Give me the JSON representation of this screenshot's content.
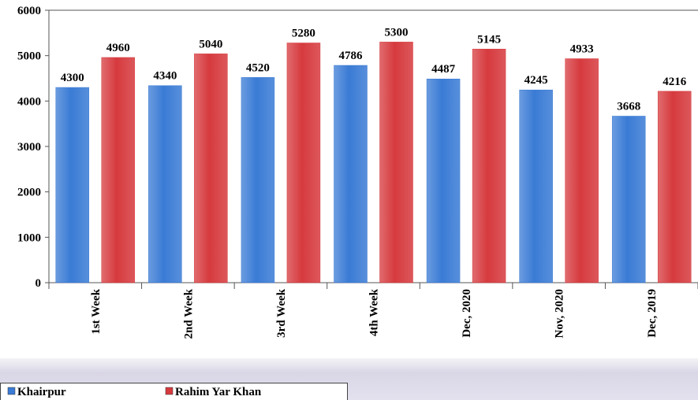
{
  "chart_data": {
    "type": "bar",
    "categories": [
      "1st Week",
      "2nd Week",
      "3rd Week",
      "4th Week",
      "Dec, 2020",
      "Nov, 2020",
      "Dec, 2019"
    ],
    "series": [
      {
        "name": "Khairpur",
        "color": "#3a7bd5",
        "values": [
          4300,
          4340,
          4520,
          4786,
          4487,
          4245,
          3668
        ]
      },
      {
        "name": "Rahim Yar Khan",
        "color": "#d63a3e",
        "values": [
          4960,
          5040,
          5280,
          5300,
          5145,
          4933,
          4216
        ]
      }
    ],
    "ylim": [
      0,
      6000
    ],
    "yticks": [
      0,
      1000,
      2000,
      3000,
      4000,
      5000,
      6000
    ],
    "grid": false,
    "legend": "bottom-left"
  }
}
